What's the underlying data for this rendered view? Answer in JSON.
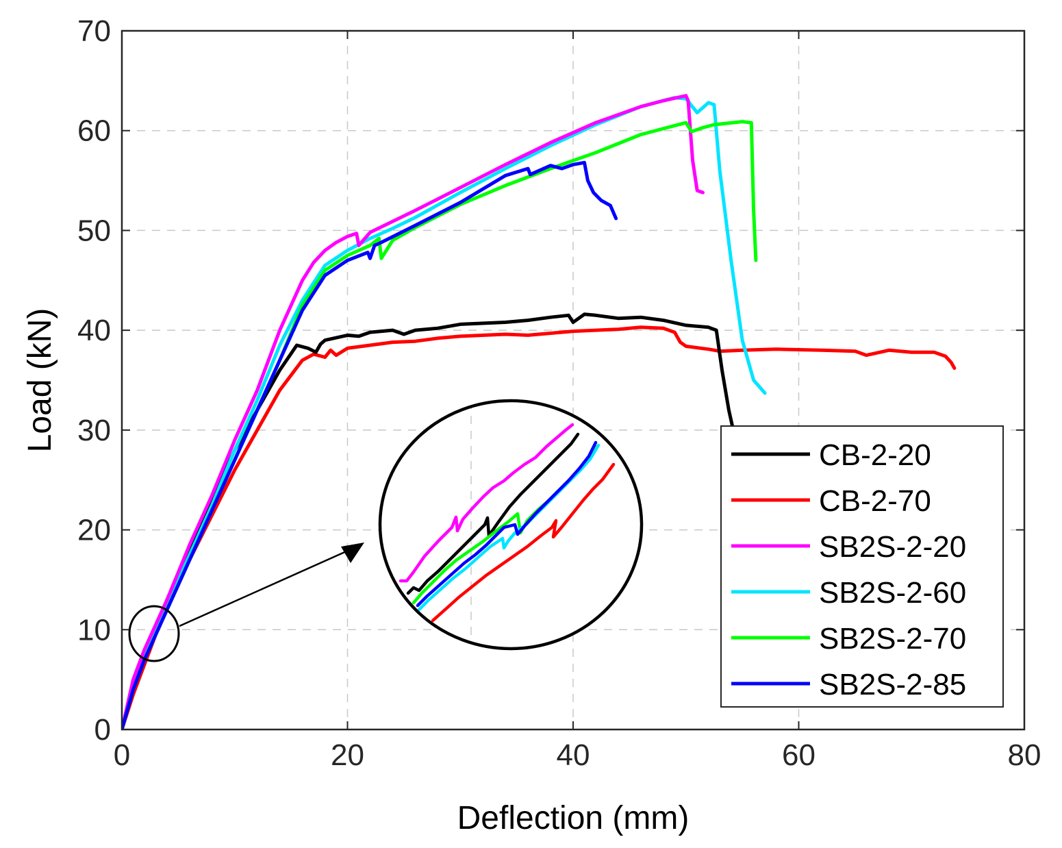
{
  "chart_data": {
    "type": "line",
    "title": "",
    "xlabel": "Deflection (mm)",
    "ylabel": "Load (kN)",
    "xlim": [
      0,
      80
    ],
    "ylim": [
      0,
      70
    ],
    "xticks": [
      "0",
      "20",
      "40",
      "60",
      "80"
    ],
    "yticks": [
      "0",
      "10",
      "20",
      "30",
      "40",
      "50",
      "60",
      "70"
    ],
    "grid": true,
    "legend_position": "bottom-right",
    "series": [
      {
        "name": "CB-2-20",
        "color": "#000000",
        "x": [
          0,
          1,
          2,
          3,
          4,
          6,
          8,
          10,
          12,
          14,
          15.5,
          16.5,
          17.2,
          17.6,
          18,
          20,
          21,
          22,
          24,
          25,
          26,
          28,
          30,
          34,
          36,
          38,
          39.6,
          40,
          41,
          42,
          44,
          46,
          48,
          50,
          52,
          52.7,
          53.2,
          53.8,
          54.2
        ],
        "y": [
          0,
          4,
          7,
          10,
          13,
          18,
          23,
          28,
          32,
          36,
          38.5,
          38.2,
          37.8,
          38.6,
          39,
          39.5,
          39.4,
          39.8,
          40,
          39.6,
          40,
          40.2,
          40.6,
          40.8,
          41,
          41.3,
          41.5,
          40.8,
          41.6,
          41.5,
          41.2,
          41.3,
          41,
          40.5,
          40.3,
          40,
          36,
          32,
          30
        ]
      },
      {
        "name": "CB-2-70",
        "color": "#ff0000",
        "x": [
          0,
          1,
          2,
          3,
          4,
          6,
          8,
          10,
          12,
          14,
          16,
          17,
          18,
          18.5,
          19,
          20,
          22,
          24,
          26,
          28,
          30,
          34,
          36,
          38,
          40,
          44,
          46,
          48,
          49,
          49.5,
          50,
          52,
          53,
          55,
          58,
          62,
          65,
          66,
          68,
          70,
          72,
          73,
          73.5,
          73.8
        ],
        "y": [
          0,
          3.5,
          6.5,
          9.5,
          12,
          17,
          21.5,
          26,
          30,
          34,
          37,
          37.6,
          37.3,
          38,
          37.5,
          38.2,
          38.5,
          38.8,
          38.9,
          39.2,
          39.4,
          39.6,
          39.5,
          39.7,
          39.9,
          40.1,
          40.3,
          40.2,
          39.8,
          38.8,
          38.4,
          38.1,
          37.9,
          38,
          38.1,
          38,
          37.9,
          37.5,
          38,
          37.8,
          37.8,
          37.4,
          36.8,
          36.2
        ]
      },
      {
        "name": "SB2S-2-20",
        "color": "#ff00ff",
        "x": [
          0,
          1,
          2,
          3,
          4,
          6,
          8,
          10,
          12,
          14,
          16,
          17,
          18,
          19,
          20,
          20.8,
          21,
          22,
          26,
          30,
          34,
          38,
          42,
          46,
          48,
          50,
          50.2,
          50.6,
          51,
          51.5
        ],
        "y": [
          0,
          5,
          8,
          10.5,
          13,
          18.5,
          23.5,
          29,
          34,
          40,
          45,
          46.8,
          48,
          48.8,
          49.4,
          49.7,
          48.5,
          49.8,
          52,
          54.3,
          56.6,
          58.8,
          60.8,
          62.4,
          63,
          63.5,
          63,
          57,
          54,
          53.8
        ]
      },
      {
        "name": "SB2S-2-60",
        "color": "#00e5ff",
        "x": [
          0,
          1,
          2,
          3,
          4,
          6,
          8,
          10,
          12,
          14,
          16,
          18,
          20,
          21,
          22,
          24,
          26,
          30,
          34,
          38,
          42,
          46,
          49,
          50,
          51,
          52,
          52.5,
          53,
          54,
          55,
          56,
          57
        ],
        "y": [
          0,
          4.5,
          7.5,
          10,
          12.5,
          17.5,
          22.5,
          28,
          33,
          38.5,
          43,
          46.5,
          48,
          48.6,
          49.2,
          50.2,
          51.3,
          53.8,
          56.2,
          58.5,
          60.6,
          62.4,
          63.3,
          63.2,
          61.8,
          62.8,
          62.6,
          56,
          47,
          39,
          35,
          33.7
        ]
      },
      {
        "name": "SB2S-2-70",
        "color": "#00ff00",
        "x": [
          0,
          1,
          2,
          3,
          4,
          6,
          8,
          10,
          12,
          14,
          16,
          18,
          20,
          22,
          22.8,
          23,
          24,
          26,
          30,
          34,
          38,
          42,
          46,
          50,
          50.5,
          51.5,
          52.5,
          55,
          55.8,
          56,
          56.2
        ],
        "y": [
          0,
          4,
          7,
          9.5,
          12,
          17,
          22,
          27,
          32,
          37,
          42.5,
          46,
          47.5,
          48.5,
          49.2,
          47.2,
          49,
          50.3,
          52.6,
          54.5,
          56.2,
          57.8,
          59.6,
          60.8,
          59.9,
          60.3,
          60.6,
          60.9,
          60.8,
          52,
          47
        ]
      },
      {
        "name": "SB2S-2-85",
        "color": "#0000ff",
        "x": [
          0,
          1,
          2,
          3,
          4,
          6,
          8,
          10,
          12,
          14,
          16,
          18,
          20,
          21.8,
          22,
          22.4,
          23,
          26,
          30,
          34,
          36,
          36.2,
          38,
          39,
          40,
          41,
          41.3,
          41.8,
          42.5,
          43.3,
          43.8
        ],
        "y": [
          0,
          4,
          7,
          9.5,
          12,
          17,
          22,
          27,
          32,
          37,
          42,
          45.5,
          47,
          47.8,
          47.2,
          48.5,
          48.8,
          50.5,
          52.8,
          55.5,
          56.2,
          55.6,
          56.5,
          56.2,
          56.6,
          56.8,
          55,
          53.8,
          53,
          52.5,
          51.2
        ]
      }
    ],
    "legend": [
      "CB-2-20",
      "CB-2-70",
      "SB2S-2-20",
      "SB2S-2-60",
      "SB2S-2-70",
      "SB2S-2-85"
    ]
  }
}
